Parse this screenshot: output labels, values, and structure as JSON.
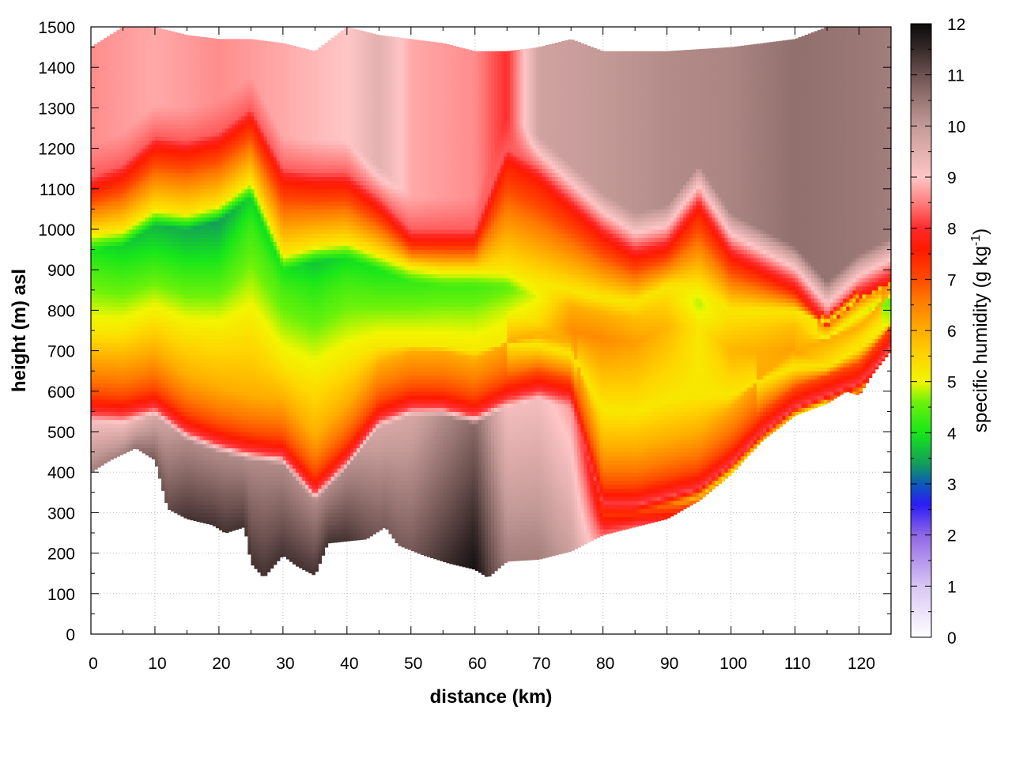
{
  "chart_data": {
    "type": "heatmap",
    "xlabel": "distance (km)",
    "ylabel": "height (m) asl",
    "xlim": [
      0,
      125
    ],
    "ylim": [
      0,
      1500
    ],
    "x_ticks": [
      "0",
      "10",
      "20",
      "30",
      "40",
      "50",
      "60",
      "70",
      "80",
      "90",
      "100",
      "110",
      "120"
    ],
    "y_ticks": [
      "0",
      "100",
      "200",
      "300",
      "400",
      "500",
      "600",
      "700",
      "800",
      "900",
      "1000",
      "1100",
      "1200",
      "1300",
      "1400",
      "1500"
    ],
    "grid": true,
    "colorbar": {
      "label_main": "specific humidity (g kg",
      "label_sup": "-1",
      "label_end": ")",
      "range": [
        0,
        12
      ],
      "ticks": [
        "0",
        "1",
        "2",
        "3",
        "4",
        "5",
        "6",
        "7",
        "8",
        "9",
        "10",
        "11",
        "12"
      ],
      "colors": [
        [
          0,
          "#ffffff"
        ],
        [
          1,
          "#d8c6f4"
        ],
        [
          2,
          "#8f66e6"
        ],
        [
          2.6,
          "#2a1cf5"
        ],
        [
          3,
          "#0c5ab8"
        ],
        [
          3.4,
          "#139e5a"
        ],
        [
          4,
          "#16e61a"
        ],
        [
          4.6,
          "#6cf20a"
        ],
        [
          5,
          "#f2f500"
        ],
        [
          5.5,
          "#ffd400"
        ],
        [
          6,
          "#ffad00"
        ],
        [
          6.6,
          "#ff7a00"
        ],
        [
          7,
          "#ff4a00"
        ],
        [
          7.6,
          "#ff1a00"
        ],
        [
          8,
          "#ff2a2a"
        ],
        [
          8.5,
          "#ff7e7e"
        ],
        [
          9,
          "#ffc6c6"
        ],
        [
          9.5,
          "#e3afaf"
        ],
        [
          10,
          "#c49a97"
        ],
        [
          10.5,
          "#9a7774"
        ],
        [
          11,
          "#6d5250"
        ],
        [
          11.5,
          "#382a29"
        ],
        [
          12,
          "#0a0a0a"
        ]
      ]
    },
    "terrain_top_m": [
      [
        0,
        400
      ],
      [
        3,
        430
      ],
      [
        7,
        460
      ],
      [
        10,
        430
      ],
      [
        12,
        310
      ],
      [
        15,
        285
      ],
      [
        19,
        270
      ],
      [
        21,
        250
      ],
      [
        24,
        265
      ],
      [
        25,
        175
      ],
      [
        27,
        140
      ],
      [
        30,
        195
      ],
      [
        32,
        170
      ],
      [
        35,
        145
      ],
      [
        37,
        225
      ],
      [
        40,
        230
      ],
      [
        43,
        235
      ],
      [
        46,
        265
      ],
      [
        48,
        220
      ],
      [
        52,
        195
      ],
      [
        56,
        175
      ],
      [
        60,
        160
      ],
      [
        62,
        140
      ],
      [
        65,
        180
      ],
      [
        70,
        185
      ],
      [
        75,
        205
      ],
      [
        80,
        245
      ],
      [
        85,
        265
      ],
      [
        90,
        285
      ],
      [
        95,
        330
      ],
      [
        100,
        395
      ],
      [
        105,
        480
      ],
      [
        110,
        540
      ],
      [
        115,
        570
      ],
      [
        118,
        600
      ],
      [
        120,
        590
      ],
      [
        122,
        640
      ],
      [
        125,
        700
      ]
    ],
    "data_top_m": [
      [
        0,
        1450
      ],
      [
        5,
        1500
      ],
      [
        10,
        1500
      ],
      [
        15,
        1480
      ],
      [
        20,
        1470
      ],
      [
        25,
        1470
      ],
      [
        30,
        1460
      ],
      [
        35,
        1440
      ],
      [
        40,
        1500
      ],
      [
        45,
        1480
      ],
      [
        50,
        1470
      ],
      [
        55,
        1460
      ],
      [
        60,
        1440
      ],
      [
        65,
        1440
      ],
      [
        70,
        1450
      ],
      [
        75,
        1470
      ],
      [
        80,
        1440
      ],
      [
        90,
        1440
      ],
      [
        100,
        1450
      ],
      [
        110,
        1470
      ],
      [
        115,
        1500
      ],
      [
        120,
        1500
      ],
      [
        125,
        1500
      ]
    ],
    "moist_layer": [
      {
        "x": 0,
        "surface_q": 10,
        "base_m": 545,
        "core_top_m": 950,
        "cap_m": 1130,
        "core_q": 4
      },
      {
        "x": 5,
        "surface_q": 10,
        "base_m": 540,
        "core_top_m": 960,
        "cap_m": 1160,
        "core_q": 3.8
      },
      {
        "x": 10,
        "surface_q": 10.5,
        "base_m": 560,
        "core_top_m": 1010,
        "cap_m": 1230,
        "core_q": 3.6
      },
      {
        "x": 15,
        "surface_q": 11,
        "base_m": 500,
        "core_top_m": 1000,
        "cap_m": 1220,
        "core_q": 3.5
      },
      {
        "x": 20,
        "surface_q": 11,
        "base_m": 470,
        "core_top_m": 1020,
        "cap_m": 1240,
        "core_q": 3.4
      },
      {
        "x": 25,
        "surface_q": 11,
        "base_m": 450,
        "core_top_m": 1080,
        "cap_m": 1300,
        "core_q": 3.8
      },
      {
        "x": 30,
        "surface_q": 11,
        "base_m": 440,
        "core_top_m": 900,
        "cap_m": 1150,
        "core_q": 4
      },
      {
        "x": 35,
        "surface_q": 11,
        "base_m": 350,
        "core_top_m": 920,
        "cap_m": 1140,
        "core_q": 3.7
      },
      {
        "x": 40,
        "surface_q": 11,
        "base_m": 430,
        "core_top_m": 930,
        "cap_m": 1140,
        "core_q": 3.9
      },
      {
        "x": 45,
        "surface_q": 10.5,
        "base_m": 530,
        "core_top_m": 900,
        "cap_m": 1080,
        "core_q": 4
      },
      {
        "x": 50,
        "surface_q": 10.5,
        "base_m": 560,
        "core_top_m": 870,
        "cap_m": 1000,
        "core_q": 4.2
      },
      {
        "x": 55,
        "surface_q": 11,
        "base_m": 560,
        "core_top_m": 860,
        "cap_m": 1000,
        "core_q": 4.3
      },
      {
        "x": 60,
        "surface_q": 11.5,
        "base_m": 540,
        "core_top_m": 860,
        "cap_m": 1000,
        "core_q": 4.3
      },
      {
        "x": 65,
        "surface_q": 10,
        "base_m": 580,
        "core_top_m": 860,
        "cap_m": 1200,
        "core_q": 4.5
      },
      {
        "x": 70,
        "surface_q": 10,
        "base_m": 600,
        "core_top_m": 830,
        "cap_m": 1150,
        "core_q": 5
      },
      {
        "x": 75,
        "surface_q": 9.5,
        "base_m": 580,
        "core_top_m": 810,
        "cap_m": 1080,
        "core_q": 6
      },
      {
        "x": 80,
        "surface_q": 8,
        "base_m": 320,
        "core_top_m": 790,
        "cap_m": 1010,
        "core_q": 6
      },
      {
        "x": 85,
        "surface_q": 8,
        "base_m": 320,
        "core_top_m": 780,
        "cap_m": 960,
        "core_q": 5.8
      },
      {
        "x": 90,
        "surface_q": 7.5,
        "base_m": 340,
        "core_top_m": 820,
        "cap_m": 980,
        "core_q": 5.5
      },
      {
        "x": 95,
        "surface_q": 6.5,
        "base_m": 360,
        "core_top_m": 820,
        "cap_m": 1080,
        "core_q": 4.8
      },
      {
        "x": 100,
        "surface_q": 6,
        "base_m": 420,
        "core_top_m": 760,
        "cap_m": 960,
        "core_q": 5.5
      },
      {
        "x": 105,
        "surface_q": 6.5,
        "base_m": 500,
        "core_top_m": 760,
        "cap_m": 920,
        "core_q": 5.6
      },
      {
        "x": 110,
        "surface_q": 6,
        "base_m": 560,
        "core_top_m": 760,
        "cap_m": 880,
        "core_q": 5.8
      },
      {
        "x": 115,
        "surface_q": 5.5,
        "base_m": 590,
        "core_top_m": 730,
        "cap_m": 790,
        "core_q": 5
      },
      {
        "x": 120,
        "surface_q": 7,
        "base_m": 620,
        "core_top_m": 790,
        "cap_m": 860,
        "core_q": 5
      },
      {
        "x": 125,
        "surface_q": 7,
        "base_m": 700,
        "core_top_m": 830,
        "cap_m": 900,
        "core_q": 4.5
      }
    ],
    "upper_air_q": [
      [
        0,
        8.6
      ],
      [
        10,
        8.8
      ],
      [
        20,
        8.6
      ],
      [
        30,
        8.8
      ],
      [
        40,
        9
      ],
      [
        45,
        9.5
      ],
      [
        50,
        8.8
      ],
      [
        60,
        8.6
      ],
      [
        65,
        8
      ],
      [
        70,
        9.8
      ],
      [
        80,
        10
      ],
      [
        90,
        10.2
      ],
      [
        100,
        10.3
      ],
      [
        110,
        10.6
      ],
      [
        120,
        10.5
      ],
      [
        125,
        10.4
      ]
    ]
  }
}
